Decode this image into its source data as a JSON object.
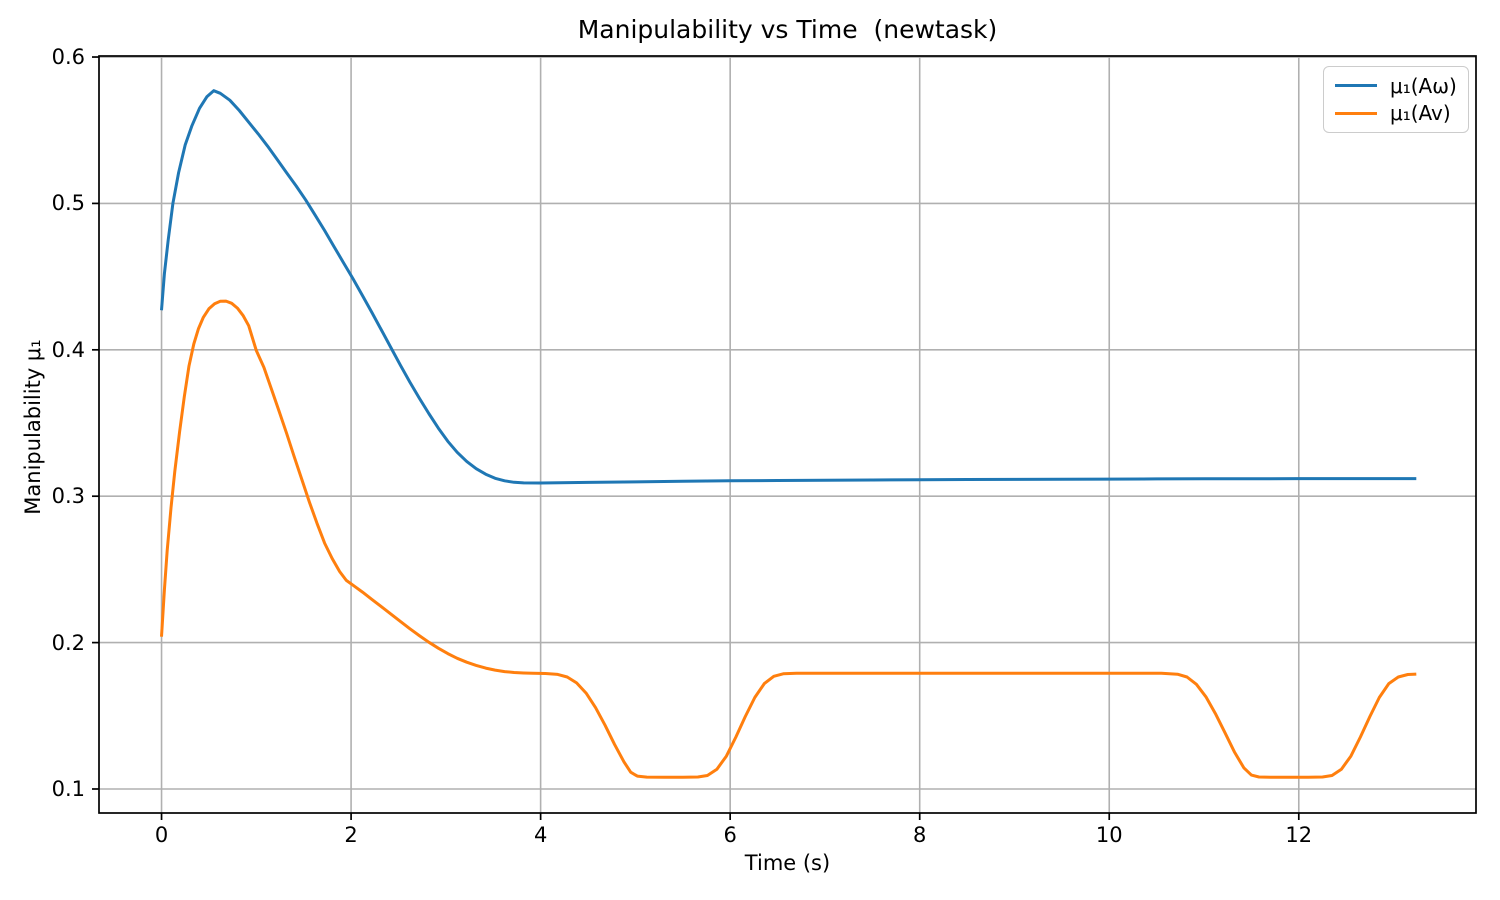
{
  "figure": {
    "title": "Manipulability vs Time  (newtask)",
    "xlabel": "Time (s)",
    "ylabel": "Manipulability μ₁"
  },
  "legend": {
    "position": "upper right",
    "entries": [
      {
        "id": "mu1-Aomega",
        "label": "μ₁(Aω)",
        "color": "#1f77b4"
      },
      {
        "id": "mu1-Av",
        "label": "μ₁(Av)",
        "color": "#ff7f0e"
      }
    ]
  },
  "chart_data": {
    "type": "line",
    "title": "Manipulability vs Time  (newtask)",
    "xlabel": "Time (s)",
    "ylabel": "Manipulability μ₁",
    "grid": true,
    "grid_color": "#b0b0b0",
    "spine_color": "#000000",
    "xlim": [
      -0.66,
      13.87
    ],
    "ylim": [
      0.0836,
      0.6007
    ],
    "xticks": [
      0,
      2,
      4,
      6,
      8,
      10,
      12
    ],
    "xtick_labels": [
      "0",
      "2",
      "4",
      "6",
      "8",
      "10",
      "12"
    ],
    "yticks": [
      0.1,
      0.2,
      0.3,
      0.4,
      0.5,
      0.6
    ],
    "ytick_labels": [
      "0.1",
      "0.2",
      "0.3",
      "0.4",
      "0.5",
      "0.6"
    ],
    "legend_position": "upper right",
    "series": [
      {
        "id": "mu1-Aomega",
        "name": "μ₁(Aω)",
        "color": "#1f77b4",
        "points": [
          [
            0,
            0.427
          ],
          [
            0.03,
            0.452
          ],
          [
            0.07,
            0.475
          ],
          [
            0.12,
            0.5
          ],
          [
            0.18,
            0.521
          ],
          [
            0.25,
            0.54
          ],
          [
            0.32,
            0.553
          ],
          [
            0.4,
            0.565
          ],
          [
            0.48,
            0.573
          ],
          [
            0.55,
            0.577
          ],
          [
            0.62,
            0.5752
          ],
          [
            0.72,
            0.5705
          ],
          [
            0.82,
            0.5635
          ],
          [
            0.92,
            0.5555
          ],
          [
            1.02,
            0.5475
          ],
          [
            1.12,
            0.539
          ],
          [
            1.22,
            0.53
          ],
          [
            1.32,
            0.521
          ],
          [
            1.42,
            0.512
          ],
          [
            1.52,
            0.5025
          ],
          [
            1.62,
            0.492
          ],
          [
            1.72,
            0.4815
          ],
          [
            1.82,
            0.4705
          ],
          [
            1.92,
            0.4595
          ],
          [
            2.02,
            0.4485
          ],
          [
            2.12,
            0.437
          ],
          [
            2.22,
            0.4255
          ],
          [
            2.32,
            0.4135
          ],
          [
            2.42,
            0.4015
          ],
          [
            2.52,
            0.3895
          ],
          [
            2.62,
            0.378
          ],
          [
            2.72,
            0.367
          ],
          [
            2.82,
            0.3565
          ],
          [
            2.92,
            0.3465
          ],
          [
            3.02,
            0.3375
          ],
          [
            3.12,
            0.33
          ],
          [
            3.22,
            0.3238
          ],
          [
            3.32,
            0.3188
          ],
          [
            3.42,
            0.315
          ],
          [
            3.52,
            0.3122
          ],
          [
            3.62,
            0.3105
          ],
          [
            3.72,
            0.3095
          ],
          [
            3.82,
            0.3091
          ],
          [
            4.0,
            0.309
          ],
          [
            4.5,
            0.3094
          ],
          [
            5.0,
            0.3098
          ],
          [
            5.5,
            0.3102
          ],
          [
            6.0,
            0.3105
          ],
          [
            6.5,
            0.3107
          ],
          [
            7.0,
            0.3109
          ],
          [
            7.5,
            0.3111
          ],
          [
            8.0,
            0.3113
          ],
          [
            8.5,
            0.3114
          ],
          [
            9.0,
            0.3115
          ],
          [
            9.5,
            0.3116
          ],
          [
            10.0,
            0.3117
          ],
          [
            10.5,
            0.3118
          ],
          [
            11.0,
            0.3119
          ],
          [
            11.5,
            0.3119
          ],
          [
            12.0,
            0.312
          ],
          [
            12.5,
            0.312
          ],
          [
            13.0,
            0.312
          ],
          [
            13.24,
            0.312
          ]
        ]
      },
      {
        "id": "mu1-Av",
        "name": "μ₁(Av)",
        "color": "#ff7f0e",
        "points": [
          [
            0,
            0.204
          ],
          [
            0.03,
            0.236
          ],
          [
            0.06,
            0.263
          ],
          [
            0.1,
            0.292
          ],
          [
            0.14,
            0.317
          ],
          [
            0.19,
            0.344
          ],
          [
            0.24,
            0.368
          ],
          [
            0.29,
            0.389
          ],
          [
            0.34,
            0.404
          ],
          [
            0.39,
            0.4145
          ],
          [
            0.44,
            0.422
          ],
          [
            0.5,
            0.428
          ],
          [
            0.56,
            0.4315
          ],
          [
            0.62,
            0.4332
          ],
          [
            0.68,
            0.4333
          ],
          [
            0.74,
            0.4318
          ],
          [
            0.8,
            0.4285
          ],
          [
            0.86,
            0.4235
          ],
          [
            0.92,
            0.4165
          ],
          [
            1.0,
            0.3995
          ],
          [
            1.08,
            0.388
          ],
          [
            1.16,
            0.373
          ],
          [
            1.24,
            0.358
          ],
          [
            1.32,
            0.343
          ],
          [
            1.4,
            0.327
          ],
          [
            1.48,
            0.3115
          ],
          [
            1.56,
            0.296
          ],
          [
            1.64,
            0.2815
          ],
          [
            1.72,
            0.268
          ],
          [
            1.8,
            0.2575
          ],
          [
            1.88,
            0.2485
          ],
          [
            1.95,
            0.2425
          ],
          [
            2.02,
            0.2392
          ],
          [
            2.12,
            0.2345
          ],
          [
            2.22,
            0.2295
          ],
          [
            2.32,
            0.2245
          ],
          [
            2.42,
            0.2195
          ],
          [
            2.52,
            0.2145
          ],
          [
            2.62,
            0.2095
          ],
          [
            2.72,
            0.2048
          ],
          [
            2.82,
            0.2003
          ],
          [
            2.92,
            0.1962
          ],
          [
            3.02,
            0.1925
          ],
          [
            3.12,
            0.1893
          ],
          [
            3.22,
            0.1866
          ],
          [
            3.32,
            0.1844
          ],
          [
            3.42,
            0.1826
          ],
          [
            3.52,
            0.1812
          ],
          [
            3.62,
            0.1802
          ],
          [
            3.72,
            0.1796
          ],
          [
            3.82,
            0.1792
          ],
          [
            3.92,
            0.179
          ],
          [
            4.05,
            0.1789
          ],
          [
            4.18,
            0.1783
          ],
          [
            4.28,
            0.1765
          ],
          [
            4.38,
            0.1725
          ],
          [
            4.48,
            0.1655
          ],
          [
            4.58,
            0.1555
          ],
          [
            4.68,
            0.1435
          ],
          [
            4.78,
            0.1305
          ],
          [
            4.88,
            0.1185
          ],
          [
            4.95,
            0.1115
          ],
          [
            5.02,
            0.1088
          ],
          [
            5.12,
            0.1081
          ],
          [
            5.3,
            0.108
          ],
          [
            5.5,
            0.108
          ],
          [
            5.66,
            0.1082
          ],
          [
            5.76,
            0.1092
          ],
          [
            5.86,
            0.1135
          ],
          [
            5.96,
            0.1225
          ],
          [
            6.06,
            0.1355
          ],
          [
            6.16,
            0.1495
          ],
          [
            6.26,
            0.1625
          ],
          [
            6.36,
            0.172
          ],
          [
            6.46,
            0.177
          ],
          [
            6.56,
            0.1787
          ],
          [
            6.7,
            0.179
          ],
          [
            7.0,
            0.179
          ],
          [
            8.0,
            0.179
          ],
          [
            9.0,
            0.179
          ],
          [
            10.0,
            0.179
          ],
          [
            10.55,
            0.179
          ],
          [
            10.72,
            0.1784
          ],
          [
            10.82,
            0.1765
          ],
          [
            10.92,
            0.1715
          ],
          [
            11.02,
            0.163
          ],
          [
            11.12,
            0.1515
          ],
          [
            11.22,
            0.1385
          ],
          [
            11.32,
            0.1255
          ],
          [
            11.42,
            0.1145
          ],
          [
            11.5,
            0.1095
          ],
          [
            11.58,
            0.1082
          ],
          [
            11.7,
            0.108
          ],
          [
            11.9,
            0.108
          ],
          [
            12.1,
            0.108
          ],
          [
            12.25,
            0.1082
          ],
          [
            12.35,
            0.1092
          ],
          [
            12.45,
            0.1135
          ],
          [
            12.55,
            0.1225
          ],
          [
            12.65,
            0.1355
          ],
          [
            12.75,
            0.1495
          ],
          [
            12.85,
            0.1625
          ],
          [
            12.95,
            0.172
          ],
          [
            13.05,
            0.1765
          ],
          [
            13.15,
            0.1782
          ],
          [
            13.24,
            0.1785
          ]
        ]
      }
    ]
  }
}
